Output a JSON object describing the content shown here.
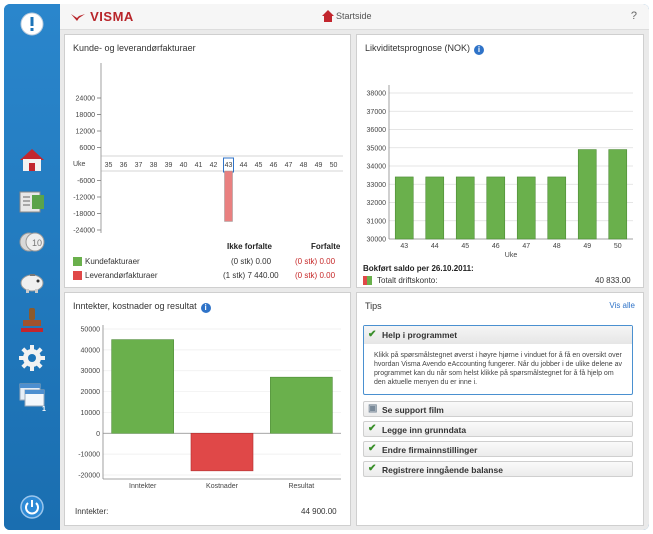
{
  "topbar": {
    "logo": "VISMA",
    "startside": "Startside",
    "help": "?"
  },
  "sidebar": {
    "items": [
      "alert-icon",
      "home-icon",
      "ledger-icon",
      "coins-icon",
      "piggy-bank-icon",
      "stamp-icon",
      "settings-icon",
      "windows-icon",
      "power-icon"
    ],
    "badge": "1"
  },
  "invoices": {
    "title": "Kunde- og leverandørfakturaer",
    "week_label": "Uke",
    "weeks": [
      "35",
      "36",
      "37",
      "38",
      "39",
      "40",
      "41",
      "42",
      "43",
      "44",
      "45",
      "46",
      "47",
      "48",
      "49",
      "50"
    ],
    "y_ticks_up": [
      "24000",
      "18000",
      "12000",
      "6000"
    ],
    "y_ticks_down": [
      "-6000",
      "-12000",
      "-18000",
      "-24000"
    ],
    "col_not_due": "Ikke forfalte",
    "col_due": "Forfalte",
    "rows": [
      {
        "label": "Kundefakturaer",
        "not_due": "(0 stk) 0.00",
        "due": "(0 stk) 0.00",
        "color": "#6ab04c"
      },
      {
        "label": "Leverandørfakturaer",
        "not_due": "(1 stk) 7 440.00",
        "due": "(0 stk) 0.00",
        "color": "#e04848"
      }
    ]
  },
  "liquidity": {
    "title": "Likviditetsprognose (NOK)",
    "xlabel": "Uke",
    "y_ticks": [
      "38000",
      "37000",
      "36000",
      "35000",
      "34000",
      "33000",
      "32000",
      "31000",
      "30000"
    ],
    "balance_label": "Bokført saldo per 26.10.2011:",
    "total_label": "Totalt driftskonto:",
    "total_value": "40 833.00"
  },
  "income": {
    "title": "Inntekter, kostnader og resultat",
    "y_ticks": [
      "50000",
      "40000",
      "30000",
      "20000",
      "10000",
      "0",
      "-10000",
      "-20000"
    ],
    "footer_label": "Inntekter:",
    "footer_value": "44 900.00"
  },
  "tips": {
    "title": "Tips",
    "see_all": "Vis alle",
    "open_title": "Help i programmet",
    "open_text": "Klikk på spørsmålstegnet øverst i høyre hjørne i vinduet for å få en oversikt over hvordan Visma Avendo eAccounting fungerer. Når du jobber i de ulike delene av programmet kan du når som helst klikke på spørsmålstegnet for å få hjelp om den aktuelle menyen du er inne i.",
    "items": [
      "Se support film",
      "Legge inn grunndata",
      "Endre firmainnstillinger",
      "Registrere inngående balanse"
    ]
  },
  "chart_data": [
    {
      "type": "bar",
      "title": "Kunde- og leverandørfakturaer",
      "xlabel": "Uke",
      "categories": [
        "35",
        "36",
        "37",
        "38",
        "39",
        "40",
        "41",
        "42",
        "43",
        "44",
        "45",
        "46",
        "47",
        "48",
        "49",
        "50"
      ],
      "series": [
        {
          "name": "Kundefakturaer",
          "values": [
            0,
            0,
            0,
            0,
            0,
            0,
            0,
            0,
            0,
            0,
            0,
            0,
            0,
            0,
            0,
            0
          ]
        },
        {
          "name": "Leverandørfakturaer",
          "values": [
            0,
            0,
            0,
            0,
            0,
            0,
            0,
            0,
            -7440,
            0,
            0,
            0,
            0,
            0,
            0,
            0
          ]
        }
      ],
      "ylim": [
        -24000,
        24000
      ]
    },
    {
      "type": "bar",
      "title": "Likviditetsprognose (NOK)",
      "xlabel": "Uke",
      "categories": [
        "43",
        "44",
        "45",
        "46",
        "47",
        "48",
        "49",
        "50"
      ],
      "values": [
        33400,
        33400,
        33400,
        33400,
        33400,
        33400,
        34900,
        34900
      ],
      "ylim": [
        30000,
        38000
      ],
      "color": "#6ab04c"
    },
    {
      "type": "bar",
      "title": "Inntekter, kostnader og resultat",
      "categories": [
        "Inntekter",
        "Kostnader",
        "Resultat"
      ],
      "values": [
        44900,
        -18000,
        26900
      ],
      "colors": [
        "#6ab04c",
        "#e04848",
        "#6ab04c"
      ],
      "ylim": [
        -20000,
        50000
      ]
    }
  ]
}
